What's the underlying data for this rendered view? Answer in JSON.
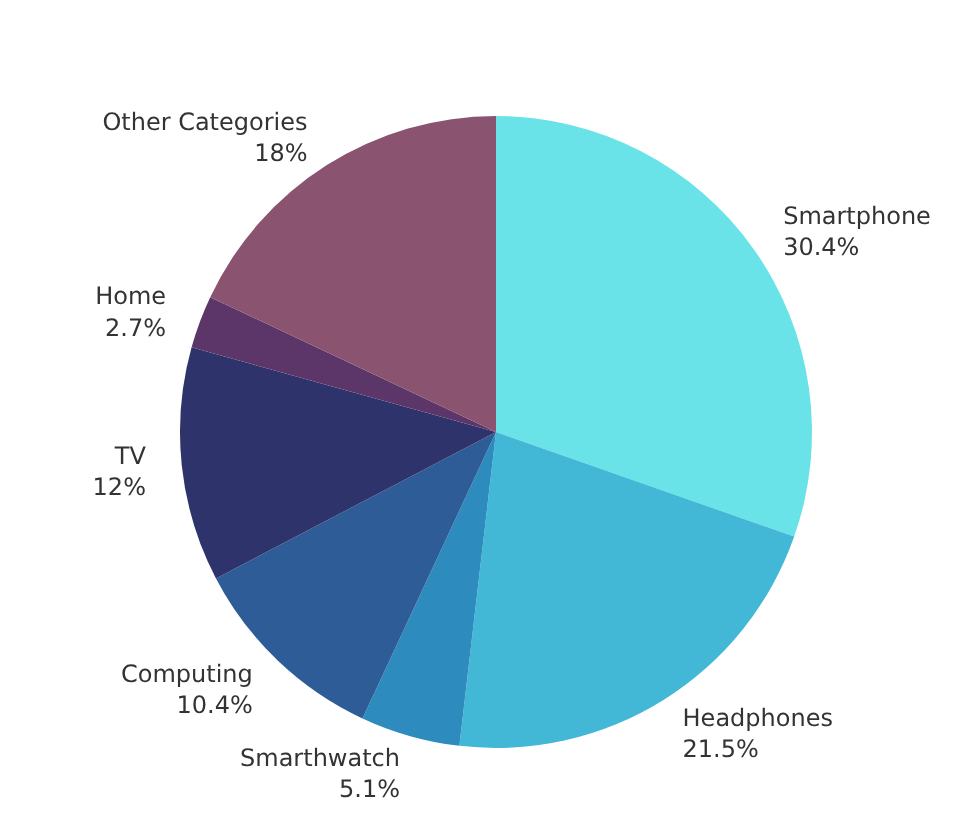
{
  "chart_data": {
    "type": "pie",
    "categories": [
      "Smartphone",
      "Headphones",
      "Smarthwatch",
      "Computing",
      "TV",
      "Home",
      "Other Categories"
    ],
    "values": [
      30.4,
      21.5,
      5.1,
      10.4,
      12,
      2.7,
      18
    ],
    "value_labels": [
      "30.4%",
      "21.5%",
      "5.1%",
      "10.4%",
      "12%",
      "2.7%",
      "18%"
    ],
    "colors": [
      "#6ae3e8",
      "#42b8d6",
      "#2e8bbd",
      "#2d5c96",
      "#2e336b",
      "#5c3668",
      "#8a536f"
    ]
  }
}
